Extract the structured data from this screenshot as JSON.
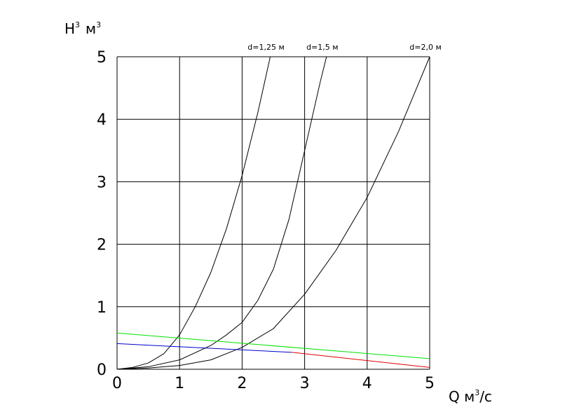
{
  "chart_data": {
    "type": "line",
    "xlabel": "Q  м",
    "xlabel_sup": "3",
    "xlabel_unit": "/с",
    "ylabel": "Н",
    "ylabel_sup": "3",
    "ylabel_unit": "м",
    "ylabel_unit_sup": "3",
    "xlim": [
      0,
      5
    ],
    "ylim": [
      0,
      5
    ],
    "x_ticks": [
      "0",
      "1",
      "2",
      "3",
      "4",
      "5"
    ],
    "y_ticks": [
      "0",
      "1",
      "2",
      "3",
      "4",
      "5"
    ],
    "grid": true,
    "series": [
      {
        "name": "d=1,25 м",
        "color": "#000000",
        "x": [
          0,
          0.25,
          0.5,
          0.75,
          1.0,
          1.25,
          1.5,
          1.75,
          2.0,
          2.25,
          2.45
        ],
        "y": [
          0,
          0.03,
          0.1,
          0.25,
          0.55,
          1.0,
          1.55,
          2.25,
          3.1,
          4.1,
          5.0
        ]
      },
      {
        "name": "d=1,5 м",
        "color": "#000000",
        "x": [
          0,
          0.5,
          1.0,
          1.5,
          1.75,
          2.0,
          2.25,
          2.5,
          2.75,
          3.0,
          3.25,
          3.35
        ],
        "y": [
          0,
          0.04,
          0.15,
          0.38,
          0.55,
          0.75,
          1.1,
          1.6,
          2.4,
          3.5,
          4.6,
          5.0
        ]
      },
      {
        "name": "d=2,0 м",
        "color": "#000000",
        "x": [
          0,
          0.5,
          1.0,
          1.5,
          2.0,
          2.5,
          3.0,
          3.5,
          4.0,
          4.5,
          5.0
        ],
        "y": [
          0,
          0.02,
          0.06,
          0.15,
          0.35,
          0.65,
          1.2,
          1.9,
          2.75,
          3.8,
          5.0
        ]
      },
      {
        "name": "",
        "color": "#00e000",
        "x": [
          0,
          5
        ],
        "y": [
          0.58,
          0.17
        ]
      },
      {
        "name": "",
        "color": "#0000cc",
        "x": [
          0,
          2.8
        ],
        "y": [
          0.41,
          0.27
        ]
      },
      {
        "name": "",
        "color": "#dd0000",
        "x": [
          2.8,
          5
        ],
        "y": [
          0.27,
          0.03
        ]
      }
    ]
  }
}
